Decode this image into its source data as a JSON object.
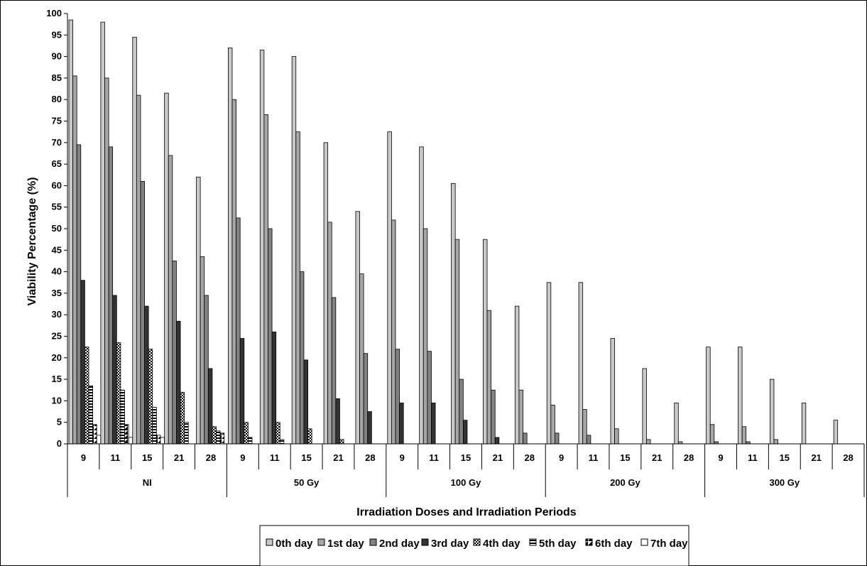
{
  "chart_data": {
    "type": "bar",
    "title": "",
    "xlabel": "Irradiation Doses and Irradiation Periods",
    "ylabel": "Viability Percentage (%)",
    "ylim": [
      0,
      100
    ],
    "ytick_step": 5,
    "grid": false,
    "legend_position": "bottom",
    "groups": [
      {
        "label": "NI",
        "periods": [
          "9",
          "11",
          "15",
          "21",
          "28"
        ]
      },
      {
        "label": "50 Gy",
        "periods": [
          "9",
          "11",
          "15",
          "21",
          "28"
        ]
      },
      {
        "label": "100 Gy",
        "periods": [
          "9",
          "11",
          "15",
          "21",
          "28"
        ]
      },
      {
        "label": "200 Gy",
        "periods": [
          "9",
          "11",
          "15",
          "21",
          "28"
        ]
      },
      {
        "label": "300 Gy",
        "periods": [
          "9",
          "11",
          "15",
          "21",
          "28"
        ]
      }
    ],
    "series": [
      {
        "name": "0th day",
        "color": "#c8c8c8",
        "pattern": "solid",
        "values": [
          98.5,
          98,
          94.5,
          81.5,
          62,
          92,
          91.5,
          90,
          70,
          54,
          72.5,
          69,
          60.5,
          47.5,
          32,
          37.5,
          37.5,
          24.5,
          17.5,
          9.5,
          22.5,
          22.5,
          15,
          9.5,
          5.5
        ]
      },
      {
        "name": "1st day",
        "color": "#a6a6a6",
        "pattern": "solid",
        "values": [
          85.5,
          85,
          81,
          67,
          43.5,
          80,
          76.5,
          72.5,
          51.5,
          39.5,
          52,
          50,
          47.5,
          31,
          12.5,
          9,
          8,
          3.5,
          1,
          0.5,
          4.5,
          4,
          1,
          0,
          0
        ]
      },
      {
        "name": "2nd day",
        "color": "#828282",
        "pattern": "solid",
        "values": [
          69.5,
          69,
          61,
          42.5,
          34.5,
          52.5,
          50,
          40,
          34,
          21,
          22,
          21.5,
          15,
          12.5,
          2.5,
          2.5,
          2,
          0,
          0,
          0,
          0.5,
          0.5,
          0,
          0,
          0
        ]
      },
      {
        "name": "3rd day",
        "color": "#333333",
        "pattern": "solid",
        "values": [
          38,
          34.5,
          32,
          28.5,
          17.5,
          24.5,
          26,
          19.5,
          10.5,
          7.5,
          9.5,
          9.5,
          5.5,
          1.5,
          0,
          0,
          0,
          0,
          0,
          0,
          0,
          0,
          0,
          0,
          0
        ]
      },
      {
        "name": "4th day",
        "color": "#000000",
        "pattern": "checker",
        "values": [
          22.5,
          23.5,
          22,
          12,
          4,
          5,
          5,
          3.5,
          1,
          0,
          0,
          0,
          0,
          0,
          0,
          0,
          0,
          0,
          0,
          0,
          0,
          0,
          0,
          0,
          0
        ]
      },
      {
        "name": "5th day",
        "color": "#000000",
        "pattern": "hstripe",
        "values": [
          13.5,
          12.5,
          8.5,
          5,
          3,
          1.5,
          1,
          0,
          0,
          0,
          0,
          0,
          0,
          0,
          0,
          0,
          0,
          0,
          0,
          0,
          0,
          0,
          0,
          0,
          0
        ]
      },
      {
        "name": "6th day",
        "color": "#000000",
        "pattern": "diagonal",
        "values": [
          4.5,
          4.5,
          2,
          0,
          2.5,
          0,
          0,
          0,
          0,
          0,
          0,
          0,
          0,
          0,
          0,
          0,
          0,
          0,
          0,
          0,
          0,
          0,
          0,
          0,
          0
        ]
      },
      {
        "name": "7th day",
        "color": "#ffffff",
        "pattern": "solid",
        "values": [
          2,
          1.5,
          1.5,
          0,
          0,
          0,
          0,
          0,
          0,
          0,
          0,
          0,
          0,
          0,
          0,
          0,
          0,
          0,
          0,
          0,
          0,
          0,
          0,
          0,
          0
        ]
      }
    ]
  }
}
